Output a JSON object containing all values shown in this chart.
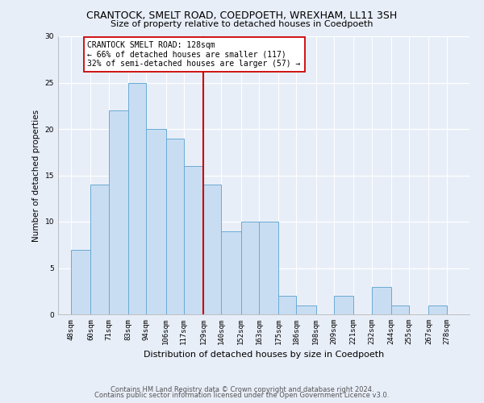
{
  "title": "CRANTOCK, SMELT ROAD, COEDPOETH, WREXHAM, LL11 3SH",
  "subtitle": "Size of property relative to detached houses in Coedpoeth",
  "xlabel": "Distribution of detached houses by size in Coedpoeth",
  "ylabel": "Number of detached properties",
  "bar_edges": [
    48,
    60,
    71,
    83,
    94,
    106,
    117,
    129,
    140,
    152,
    163,
    175,
    186,
    198,
    209,
    221,
    232,
    244,
    255,
    267,
    278,
    290
  ],
  "bar_heights": [
    7,
    14,
    22,
    25,
    20,
    19,
    16,
    14,
    9,
    10,
    10,
    2,
    1,
    0,
    2,
    0,
    3,
    1,
    0,
    1,
    0
  ],
  "tick_labels": [
    "48sqm",
    "60sqm",
    "71sqm",
    "83sqm",
    "94sqm",
    "106sqm",
    "117sqm",
    "129sqm",
    "140sqm",
    "152sqm",
    "163sqm",
    "175sqm",
    "186sqm",
    "198sqm",
    "209sqm",
    "221sqm",
    "232sqm",
    "244sqm",
    "255sqm",
    "267sqm",
    "278sqm"
  ],
  "tick_positions": [
    48,
    60,
    71,
    83,
    94,
    106,
    117,
    129,
    140,
    152,
    163,
    175,
    186,
    198,
    209,
    221,
    232,
    244,
    255,
    267,
    278
  ],
  "bar_color": "#c9ddf2",
  "bar_edge_color": "#6aaad4",
  "vline_x": 129,
  "vline_color": "#cc0000",
  "annotation_title": "CRANTOCK SMELT ROAD: 128sqm",
  "annotation_line1": "← 66% of detached houses are smaller (117)",
  "annotation_line2": "32% of semi-detached houses are larger (57) →",
  "annotation_box_color": "#ffffff",
  "annotation_box_edge": "#cc0000",
  "ylim": [
    0,
    30
  ],
  "yticks": [
    0,
    5,
    10,
    15,
    20,
    25,
    30
  ],
  "xlim_left": 40,
  "xlim_right": 292,
  "footer1": "Contains HM Land Registry data © Crown copyright and database right 2024.",
  "footer2": "Contains public sector information licensed under the Open Government Licence v3.0.",
  "bg_color": "#e8eef8",
  "plot_bg_color": "#e8eef8",
  "grid_color": "#ffffff"
}
